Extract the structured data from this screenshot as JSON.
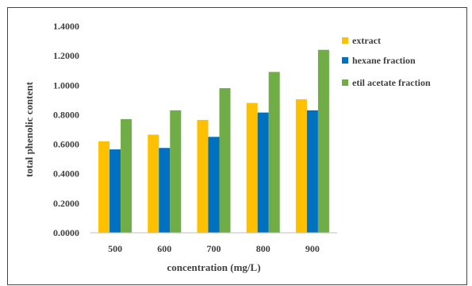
{
  "chart_data": {
    "type": "bar",
    "title": "",
    "xlabel": "concentration (mg/L)",
    "ylabel": "total phenolic content",
    "categories": [
      "500",
      "600",
      "700",
      "800",
      "900"
    ],
    "ylim": [
      0,
      1.4
    ],
    "yticks": [
      "0.0000",
      "0.2000",
      "0.4000",
      "0.6000",
      "0.8000",
      "1.0000",
      "1.2000",
      "1.4000"
    ],
    "grid": false,
    "legend_position": "right",
    "series": [
      {
        "name": "extract",
        "color": "#FFC000",
        "values": [
          0.62,
          0.665,
          0.765,
          0.88,
          0.905
        ]
      },
      {
        "name": "hexane fraction",
        "color": "#0070C0",
        "values": [
          0.565,
          0.575,
          0.65,
          0.815,
          0.83
        ]
      },
      {
        "name": "etil acetate fraction",
        "color": "#70AD47",
        "values": [
          0.77,
          0.83,
          0.98,
          1.09,
          1.24
        ]
      }
    ]
  }
}
